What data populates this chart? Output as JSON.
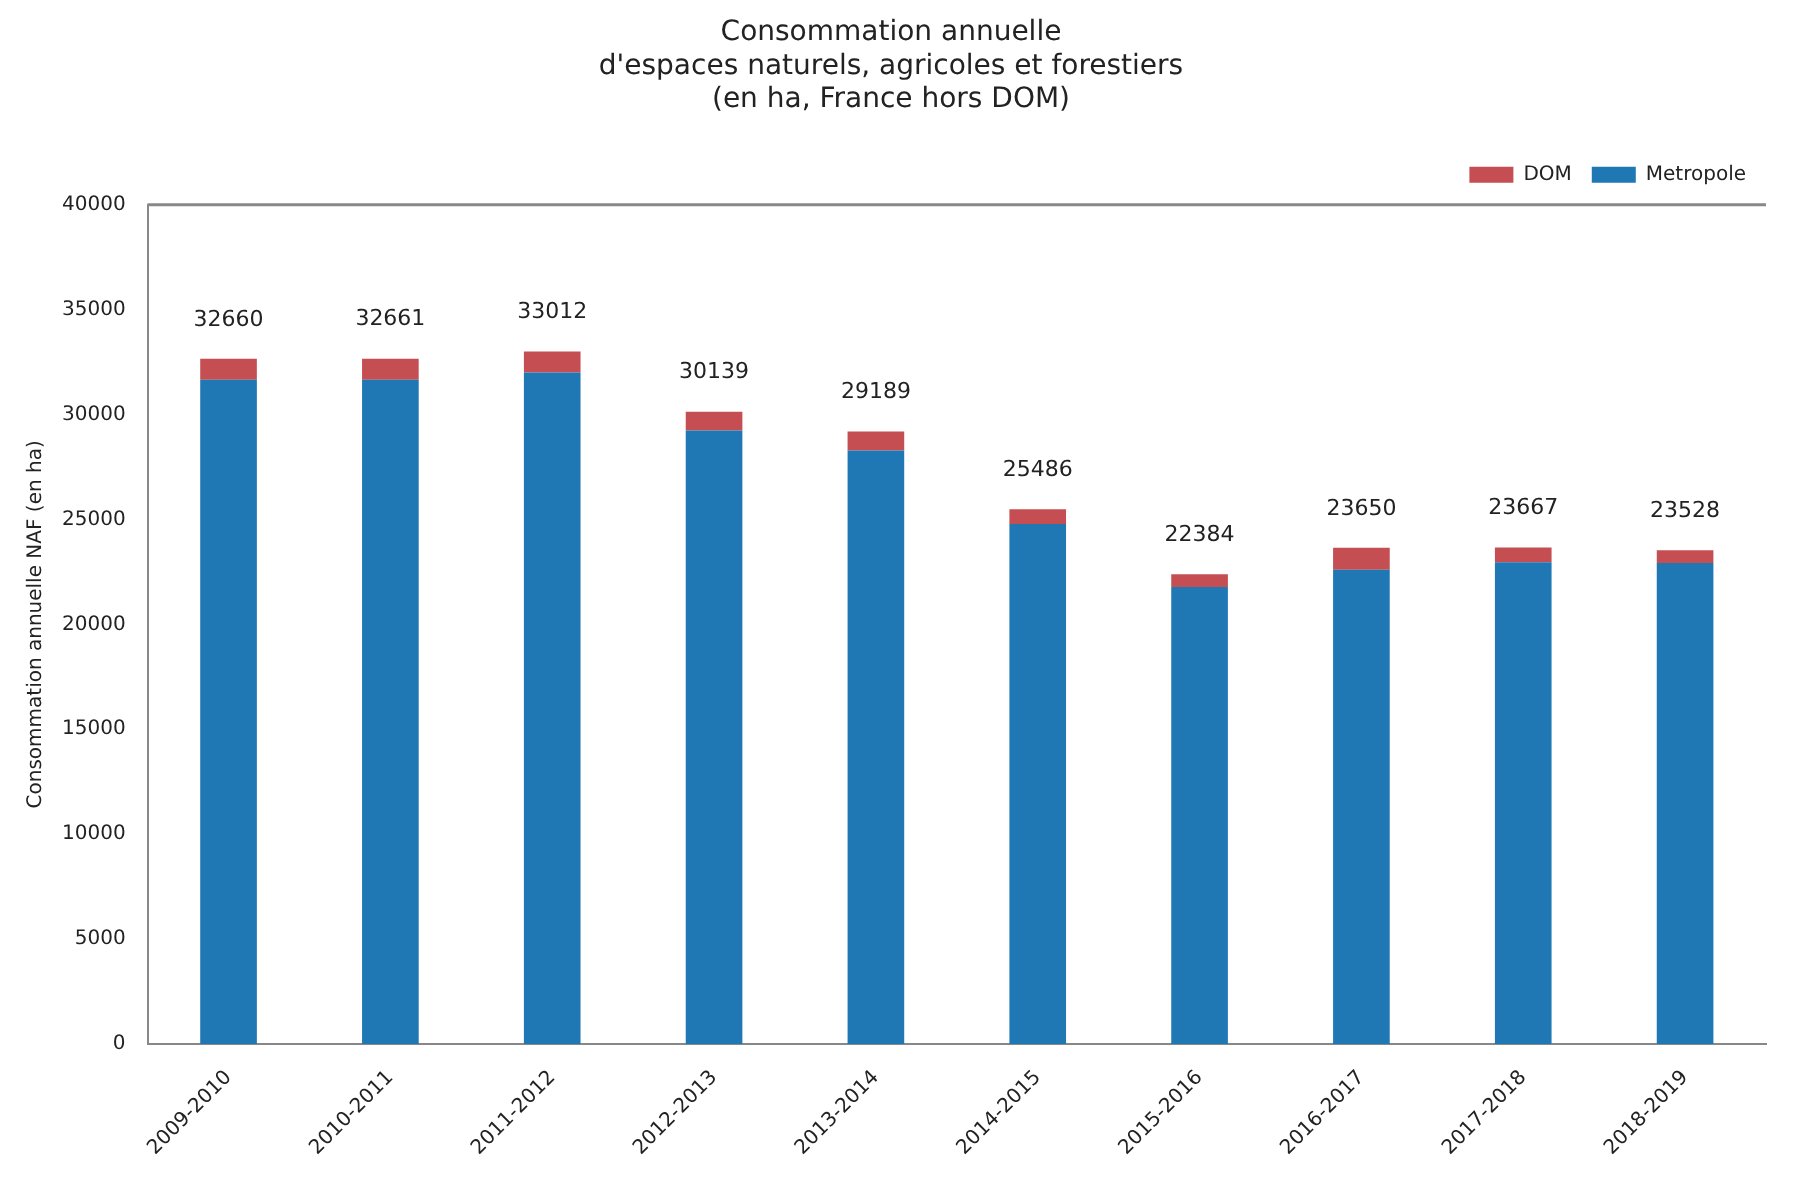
{
  "chart_data": {
    "type": "bar",
    "title": "Consommation annuelle\nd'espaces naturels, agricoles et forestiers\n(en ha, France hors DOM)",
    "ylabel": "Consommation annuelle NAF (en ha)",
    "categories": [
      "2009-2010",
      "2010-2011",
      "2011-2012",
      "2012-2013",
      "2013-2014",
      "2014-2015",
      "2015-2016",
      "2016-2017",
      "2017-2018",
      "2018-2019"
    ],
    "series": [
      {
        "name": "Metropole",
        "color": "#1f77b4",
        "values": [
          31660,
          31661,
          32012,
          29239,
          28289,
          24786,
          21784,
          22600,
          22967,
          22928
        ]
      },
      {
        "name": "DOM",
        "color": "#c44e52",
        "values": [
          1000,
          1000,
          1000,
          900,
          900,
          700,
          600,
          1050,
          700,
          600
        ]
      }
    ],
    "stacked": true,
    "totals": [
      "32660",
      "32661",
      "33012",
      "30139",
      "29189",
      "25486",
      "22384",
      "23650",
      "23667",
      "23528"
    ],
    "ylim": [
      0,
      40000
    ],
    "yticks": [
      0,
      5000,
      10000,
      15000,
      20000,
      25000,
      30000,
      35000,
      40000
    ],
    "grid": false,
    "legend": "top right"
  }
}
